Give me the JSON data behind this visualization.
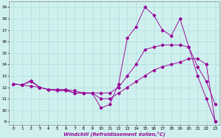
{
  "xlabel": "Windchill (Refroidissement éolien,°C)",
  "background_color": "#cff0ee",
  "line_color": "#990099",
  "grid_color": "#aadddd",
  "xticks": [
    0,
    1,
    2,
    3,
    4,
    5,
    6,
    7,
    8,
    9,
    10,
    11,
    12,
    13,
    14,
    15,
    16,
    17,
    18,
    19,
    20,
    21,
    22,
    23
  ],
  "yticks": [
    9,
    10,
    11,
    12,
    13,
    14,
    15,
    16,
    17,
    18,
    19
  ],
  "ylim": [
    8.7,
    19.5
  ],
  "xlim": [
    -0.5,
    23.5
  ],
  "line1_x": [
    0,
    1,
    2,
    3,
    4,
    5,
    6,
    7,
    8,
    9,
    10,
    11,
    12,
    13,
    14,
    15,
    16,
    17,
    18,
    19,
    20,
    21,
    22,
    23
  ],
  "line1_y": [
    12.3,
    12.2,
    12.6,
    12.0,
    11.8,
    11.8,
    11.8,
    11.5,
    11.5,
    11.5,
    10.2,
    10.5,
    12.3,
    16.3,
    17.3,
    19.0,
    18.3,
    17.0,
    16.5,
    18.0,
    15.5,
    13.0,
    11.0,
    9.0
  ],
  "line2_x": [
    0,
    1,
    2,
    3,
    4,
    5,
    6,
    7,
    8,
    9,
    10,
    11,
    12,
    13,
    14,
    15,
    16,
    17,
    18,
    19,
    20,
    21,
    22,
    23
  ],
  "line2_y": [
    12.3,
    12.2,
    12.5,
    12.0,
    11.8,
    11.8,
    11.8,
    11.7,
    11.5,
    11.5,
    11.5,
    11.5,
    12.0,
    13.0,
    14.0,
    15.3,
    15.5,
    15.7,
    15.7,
    15.7,
    15.5,
    13.8,
    12.5,
    10.5
  ],
  "line3_x": [
    0,
    1,
    2,
    3,
    4,
    5,
    6,
    7,
    8,
    9,
    10,
    11,
    12,
    13,
    14,
    15,
    16,
    17,
    18,
    19,
    20,
    21,
    22,
    23
  ],
  "line3_y": [
    12.3,
    12.2,
    12.1,
    12.0,
    11.8,
    11.7,
    11.7,
    11.5,
    11.5,
    11.5,
    11.0,
    11.0,
    11.5,
    12.0,
    12.5,
    13.0,
    13.5,
    13.8,
    14.0,
    14.2,
    14.5,
    14.5,
    14.0,
    9.0
  ]
}
